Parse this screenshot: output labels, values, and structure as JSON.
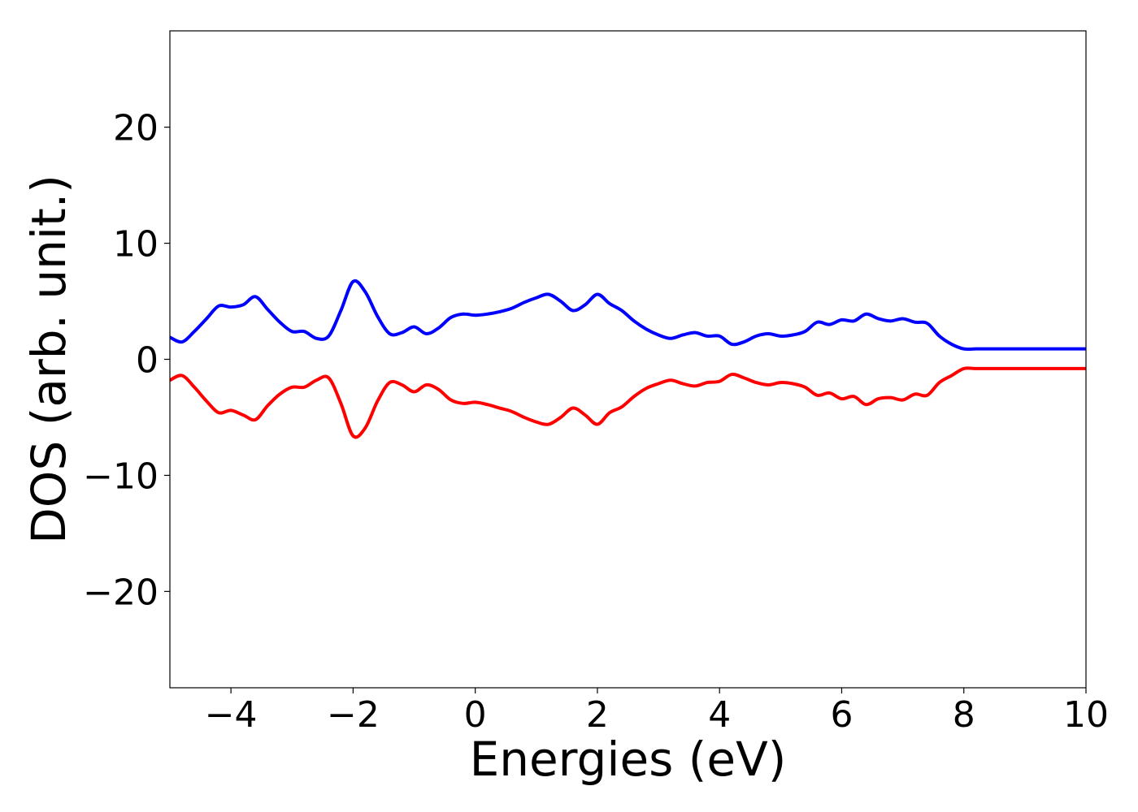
{
  "chart_data": {
    "type": "line",
    "title": "",
    "xlabel": "Energies (eV)",
    "ylabel": "DOS (arb. unit.)",
    "xlim": [
      -5,
      10
    ],
    "ylim": [
      -28.3,
      28.3
    ],
    "xticks": [
      -4,
      -2,
      0,
      2,
      4,
      6,
      8,
      10
    ],
    "xtick_labels": [
      "−4",
      "−2",
      "0",
      "2",
      "4",
      "6",
      "8",
      "10"
    ],
    "yticks": [
      -20,
      -10,
      0,
      10,
      20
    ],
    "ytick_labels": [
      "−20",
      "−10",
      "0",
      "10",
      "20"
    ],
    "grid": false,
    "legend": "none",
    "x": [
      -5.0,
      -4.8,
      -4.6,
      -4.4,
      -4.2,
      -4.0,
      -3.8,
      -3.6,
      -3.4,
      -3.2,
      -3.0,
      -2.8,
      -2.6,
      -2.4,
      -2.2,
      -2.0,
      -1.8,
      -1.6,
      -1.4,
      -1.2,
      -1.0,
      -0.8,
      -0.6,
      -0.4,
      -0.2,
      0.0,
      0.2,
      0.4,
      0.6,
      0.8,
      1.0,
      1.2,
      1.4,
      1.6,
      1.8,
      2.0,
      2.2,
      2.4,
      2.6,
      2.8,
      3.0,
      3.2,
      3.4,
      3.6,
      3.8,
      4.0,
      4.2,
      4.4,
      4.6,
      4.8,
      5.0,
      5.2,
      5.4,
      5.6,
      5.8,
      6.0,
      6.2,
      6.4,
      6.6,
      6.8,
      7.0,
      7.2,
      7.4,
      7.6,
      7.8,
      8.0,
      8.2,
      8.4,
      8.6,
      8.8,
      9.0,
      9.2,
      9.4,
      9.6,
      9.8,
      10.0
    ],
    "series": [
      {
        "color": "#0000ff",
        "values": [
          1.9,
          1.5,
          2.4,
          3.5,
          4.6,
          4.5,
          4.7,
          5.4,
          4.3,
          3.2,
          2.4,
          2.4,
          1.8,
          2.0,
          4.2,
          6.7,
          5.8,
          3.7,
          2.2,
          2.3,
          2.8,
          2.2,
          2.7,
          3.6,
          3.9,
          3.8,
          3.9,
          4.1,
          4.4,
          4.9,
          5.3,
          5.6,
          5.0,
          4.2,
          4.7,
          5.6,
          4.8,
          4.2,
          3.3,
          2.6,
          2.1,
          1.8,
          2.1,
          2.3,
          2.0,
          2.0,
          1.3,
          1.5,
          2.0,
          2.2,
          2.0,
          2.1,
          2.4,
          3.2,
          3.0,
          3.4,
          3.3,
          3.9,
          3.5,
          3.3,
          3.5,
          3.2,
          3.1,
          2.0,
          1.3,
          0.9,
          0.9,
          0.9,
          0.9,
          0.9,
          0.9,
          0.9,
          0.9,
          0.9,
          0.9,
          0.9
        ]
      },
      {
        "color": "#ff0000",
        "values": [
          -1.8,
          -1.4,
          -2.4,
          -3.6,
          -4.6,
          -4.4,
          -4.8,
          -5.2,
          -4.0,
          -3.0,
          -2.4,
          -2.4,
          -1.8,
          -1.6,
          -3.8,
          -6.6,
          -5.9,
          -3.6,
          -2.0,
          -2.2,
          -2.8,
          -2.2,
          -2.6,
          -3.5,
          -3.8,
          -3.7,
          -3.9,
          -4.2,
          -4.5,
          -5.0,
          -5.4,
          -5.6,
          -5.0,
          -4.2,
          -4.8,
          -5.6,
          -4.6,
          -4.1,
          -3.2,
          -2.5,
          -2.1,
          -1.8,
          -2.1,
          -2.3,
          -2.0,
          -1.9,
          -1.3,
          -1.6,
          -2.0,
          -2.2,
          -2.0,
          -2.1,
          -2.4,
          -3.1,
          -2.9,
          -3.4,
          -3.2,
          -3.9,
          -3.4,
          -3.3,
          -3.5,
          -3.0,
          -3.1,
          -2.0,
          -1.4,
          -0.8,
          -0.8,
          -0.8,
          -0.8,
          -0.8,
          -0.8,
          -0.8,
          -0.8,
          -0.8,
          -0.8,
          -0.8
        ]
      }
    ]
  }
}
